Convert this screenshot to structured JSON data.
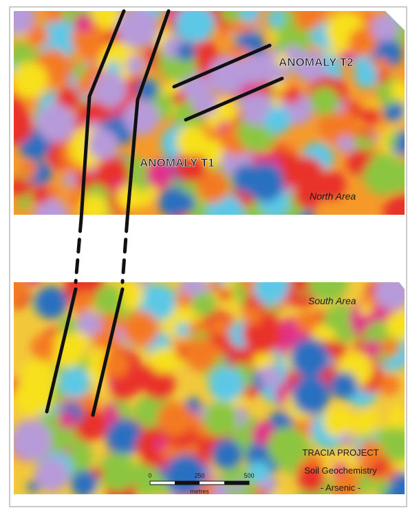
{
  "north_area": {
    "label": "North Area",
    "anomalies": [
      {
        "label": "ANOMALY T2"
      },
      {
        "label": "ANOMALY T1"
      }
    ]
  },
  "south_area": {
    "label": "South Area"
  },
  "legend": {
    "project": "TRACIA PROJECT",
    "subtitle": "Soil Geochemistry",
    "element": "- Arsenic -"
  },
  "scale_bar": {
    "ticks": [
      "0",
      "250",
      "500"
    ],
    "unit": "metres"
  }
}
